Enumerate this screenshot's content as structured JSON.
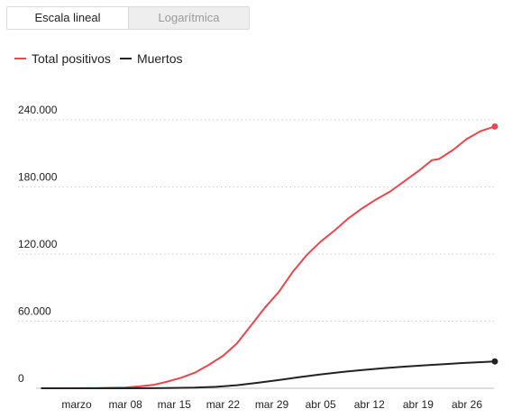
{
  "controls": {
    "linear_label": "Escala lineal",
    "log_label": "Logarítmica",
    "selected": "linear"
  },
  "chart_data": {
    "type": "line",
    "title": "",
    "xlabel": "",
    "ylabel": "",
    "ylim": [
      0,
      240000
    ],
    "yticks": [
      0,
      60000,
      120000,
      180000,
      240000
    ],
    "ytick_labels": [
      "0",
      "60.000",
      "120.000",
      "180.000",
      "240.000"
    ],
    "x_tick_labels": [
      "marzo",
      "mar 08",
      "mar 15",
      "mar 22",
      "mar 29",
      "abr 05",
      "abr 12",
      "abr 19",
      "abr 26"
    ],
    "x_tick_dates": [
      "2020-03-01",
      "2020-03-08",
      "2020-03-15",
      "2020-03-22",
      "2020-03-29",
      "2020-04-05",
      "2020-04-12",
      "2020-04-19",
      "2020-04-26"
    ],
    "grid": "horizontal dotted",
    "legend_position": "top-left",
    "series": [
      {
        "name": "Total positivos",
        "color": "#e8474c",
        "points": [
          [
            "2020-02-25",
            0
          ],
          [
            "2020-03-01",
            80
          ],
          [
            "2020-03-04",
            220
          ],
          [
            "2020-03-06",
            500
          ],
          [
            "2020-03-08",
            700
          ],
          [
            "2020-03-10",
            1700
          ],
          [
            "2020-03-12",
            3000
          ],
          [
            "2020-03-14",
            6000
          ],
          [
            "2020-03-16",
            9400
          ],
          [
            "2020-03-18",
            14000
          ],
          [
            "2020-03-20",
            21000
          ],
          [
            "2020-03-22",
            29000
          ],
          [
            "2020-03-24",
            40000
          ],
          [
            "2020-03-26",
            56000
          ],
          [
            "2020-03-28",
            72000
          ],
          [
            "2020-03-30",
            86000
          ],
          [
            "2020-04-01",
            104000
          ],
          [
            "2020-04-03",
            119000
          ],
          [
            "2020-04-05",
            131000
          ],
          [
            "2020-04-07",
            141000
          ],
          [
            "2020-04-09",
            152000
          ],
          [
            "2020-04-11",
            161000
          ],
          [
            "2020-04-13",
            169000
          ],
          [
            "2020-04-15",
            176000
          ],
          [
            "2020-04-17",
            185000
          ],
          [
            "2020-04-19",
            194000
          ],
          [
            "2020-04-21",
            204000
          ],
          [
            "2020-04-22",
            205000
          ],
          [
            "2020-04-24",
            213000
          ],
          [
            "2020-04-26",
            223000
          ],
          [
            "2020-04-28",
            230000
          ],
          [
            "2020-04-30",
            234000
          ]
        ]
      },
      {
        "name": "Muertos",
        "color": "#222222",
        "points": [
          [
            "2020-02-25",
            0
          ],
          [
            "2020-03-08",
            17
          ],
          [
            "2020-03-12",
            85
          ],
          [
            "2020-03-15",
            290
          ],
          [
            "2020-03-18",
            600
          ],
          [
            "2020-03-21",
            1300
          ],
          [
            "2020-03-24",
            2700
          ],
          [
            "2020-03-27",
            4900
          ],
          [
            "2020-03-30",
            7300
          ],
          [
            "2020-04-02",
            10000
          ],
          [
            "2020-04-05",
            12400
          ],
          [
            "2020-04-08",
            14500
          ],
          [
            "2020-04-11",
            16300
          ],
          [
            "2020-04-14",
            17900
          ],
          [
            "2020-04-17",
            19300
          ],
          [
            "2020-04-20",
            20500
          ],
          [
            "2020-04-23",
            21700
          ],
          [
            "2020-04-26",
            22800
          ],
          [
            "2020-04-30",
            24000
          ]
        ]
      }
    ]
  }
}
